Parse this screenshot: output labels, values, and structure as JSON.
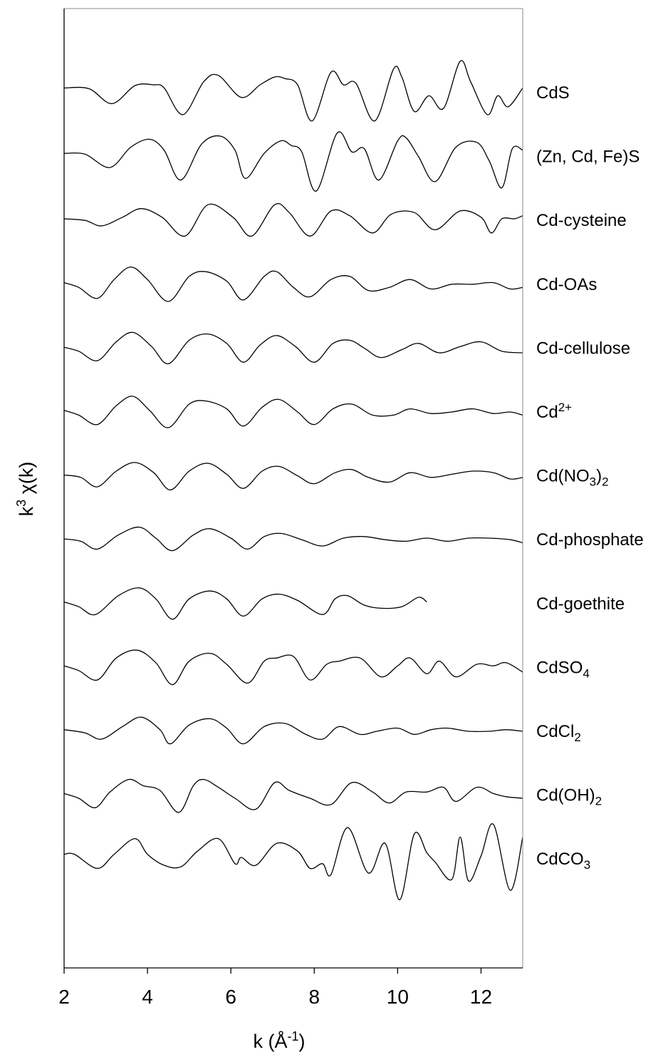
{
  "chart_data": {
    "type": "line",
    "title": "",
    "xlabel": "k (Å",
    "xlabel_sup": "-1",
    "xlabel_end": ")",
    "ylabel": "k",
    "ylabel_sup": "3",
    "ylabel_end": " χ(k)",
    "xlim": [
      2,
      13
    ],
    "xticks": [
      2,
      4,
      6,
      8,
      10,
      12
    ],
    "grid": false,
    "legend": "labels at right end of each trace",
    "y_axis_note": "traces vertically offset, no y tick labels",
    "series": [
      {
        "name": "CdS",
        "label_parts": [
          [
            "CdS",
            ""
          ]
        ],
        "x": [
          2.0,
          2.6,
          3.15,
          3.7,
          4.15,
          4.4,
          4.85,
          5.35,
          5.7,
          6.25,
          6.7,
          7.05,
          7.3,
          7.6,
          7.95,
          8.4,
          8.7,
          9.0,
          9.45,
          9.9,
          10.1,
          10.4,
          10.75,
          11.1,
          11.5,
          11.75,
          12.15,
          12.4,
          12.65,
          13.0
        ],
        "y": [
          0.3,
          0.25,
          -0.7,
          0.45,
          0.5,
          0.3,
          -1.4,
          0.7,
          1.1,
          -0.3,
          0.5,
          1.0,
          0.9,
          0.5,
          -1.8,
          1.3,
          0.5,
          0.6,
          -1.8,
          1.5,
          1.0,
          -1.2,
          -0.2,
          -1.0,
          2.0,
          0.7,
          -1.4,
          -0.2,
          -0.9,
          0.3
        ]
      },
      {
        "name": "(Zn, Cd, Fe)S",
        "label_parts": [
          [
            "(Zn, Cd, Fe)S",
            ""
          ]
        ],
        "x": [
          2.0,
          2.5,
          3.1,
          3.6,
          4.05,
          4.4,
          4.8,
          5.3,
          5.75,
          6.1,
          6.35,
          6.8,
          7.2,
          7.45,
          7.7,
          8.05,
          8.55,
          8.9,
          9.2,
          9.55,
          10.0,
          10.2,
          10.5,
          10.9,
          11.4,
          11.9,
          12.2,
          12.5,
          12.75,
          13.0
        ],
        "y": [
          0.2,
          0.15,
          -0.7,
          0.6,
          1.1,
          0.4,
          -1.5,
          0.8,
          1.3,
          0.4,
          -1.4,
          0.2,
          1.0,
          0.7,
          0.3,
          -2.2,
          1.5,
          0.3,
          0.5,
          -1.5,
          1.0,
          1.2,
          0.0,
          -1.6,
          0.6,
          0.9,
          -0.3,
          -2.0,
          0.5,
          0.4
        ]
      },
      {
        "name": "Cd-cysteine",
        "label_parts": [
          [
            "Cd-cysteine",
            ""
          ]
        ],
        "x": [
          2.0,
          2.5,
          2.9,
          3.4,
          3.85,
          4.35,
          4.9,
          5.45,
          6.05,
          6.5,
          7.05,
          7.4,
          7.9,
          8.4,
          8.85,
          9.4,
          9.85,
          10.4,
          10.9,
          11.5,
          12.0,
          12.25,
          12.5,
          12.8,
          13.0
        ],
        "y": [
          0.1,
          0.0,
          -0.35,
          0.2,
          0.75,
          0.2,
          -1.0,
          1.0,
          0.2,
          -1.0,
          1.0,
          0.5,
          -1.0,
          0.6,
          0.3,
          -0.8,
          0.4,
          0.5,
          -0.6,
          0.6,
          0.2,
          -0.8,
          0.1,
          0.1,
          0.3
        ]
      },
      {
        "name": "Cd-OAs",
        "label_parts": [
          [
            "Cd-OAs",
            ""
          ]
        ],
        "x": [
          2.0,
          2.35,
          2.8,
          3.2,
          3.6,
          4.0,
          4.5,
          5.0,
          5.4,
          5.9,
          6.3,
          6.8,
          7.1,
          7.5,
          7.9,
          8.4,
          8.85,
          9.3,
          9.8,
          10.3,
          10.8,
          11.3,
          11.8,
          12.3,
          12.7,
          13.0
        ],
        "y": [
          0.1,
          -0.2,
          -0.9,
          0.3,
          1.1,
          0.3,
          -1.1,
          0.5,
          0.8,
          0.2,
          -1.0,
          0.5,
          0.8,
          -0.2,
          -0.8,
          0.3,
          0.5,
          -0.4,
          -0.2,
          0.3,
          -0.3,
          0.0,
          0.0,
          0.1,
          -0.3,
          -0.2
        ]
      },
      {
        "name": "Cd-cellulose",
        "label_parts": [
          [
            "Cd-cellulose",
            ""
          ]
        ],
        "x": [
          2.0,
          2.35,
          2.8,
          3.25,
          3.65,
          4.1,
          4.5,
          5.0,
          5.45,
          5.9,
          6.3,
          6.7,
          7.1,
          7.55,
          8.0,
          8.45,
          8.85,
          9.2,
          9.6,
          10.1,
          10.5,
          11.0,
          11.5,
          12.0,
          12.5,
          13.0
        ],
        "y": [
          0.05,
          -0.2,
          -0.8,
          0.4,
          1.0,
          0.1,
          -1.0,
          0.5,
          0.9,
          0.3,
          -0.9,
          0.2,
          0.8,
          0.1,
          -0.9,
          0.3,
          0.5,
          0.0,
          -0.6,
          -0.1,
          0.3,
          -0.3,
          0.1,
          0.4,
          -0.2,
          -0.3
        ]
      },
      {
        "name": "Cd2+",
        "label_parts": [
          [
            "Cd",
            ""
          ],
          [
            "2+",
            "sup"
          ]
        ],
        "x": [
          2.0,
          2.35,
          2.8,
          3.25,
          3.65,
          4.05,
          4.5,
          5.0,
          5.4,
          5.9,
          6.3,
          6.75,
          7.15,
          7.6,
          8.0,
          8.45,
          8.9,
          9.4,
          9.9,
          10.3,
          10.8,
          11.3,
          11.8,
          12.3,
          12.7,
          13.0
        ],
        "y": [
          0.1,
          -0.2,
          -0.8,
          0.4,
          1.0,
          0.1,
          -1.0,
          0.5,
          0.7,
          0.2,
          -0.9,
          0.3,
          0.8,
          0.0,
          -0.8,
          0.2,
          0.5,
          -0.2,
          -0.2,
          0.2,
          -0.1,
          0.0,
          0.2,
          -0.1,
          0.0,
          -0.2
        ]
      },
      {
        "name": "Cd(NO3)2",
        "label_parts": [
          [
            "Cd(NO",
            ""
          ],
          [
            "3",
            "sub"
          ],
          [
            ")",
            ""
          ],
          [
            "2",
            "sub"
          ]
        ],
        "x": [
          2.0,
          2.4,
          2.8,
          3.25,
          3.7,
          4.15,
          4.55,
          5.0,
          5.45,
          5.9,
          6.3,
          6.75,
          7.15,
          7.6,
          8.0,
          8.5,
          8.9,
          9.3,
          9.8,
          10.3,
          10.8,
          11.3,
          11.8,
          12.3,
          12.7,
          13.0
        ],
        "y": [
          0.05,
          -0.1,
          -0.7,
          0.3,
          0.85,
          0.2,
          -0.9,
          0.3,
          0.8,
          0.1,
          -0.8,
          0.3,
          0.6,
          0.0,
          -0.5,
          0.2,
          0.4,
          -0.1,
          -0.4,
          0.2,
          -0.1,
          0.1,
          0.3,
          0.2,
          -0.2,
          -0.1
        ]
      },
      {
        "name": "Cd-phosphate",
        "label_parts": [
          [
            "Cd-phosphate",
            ""
          ]
        ],
        "x": [
          2.0,
          2.4,
          2.8,
          3.3,
          3.8,
          4.2,
          4.6,
          5.1,
          5.5,
          6.0,
          6.4,
          6.8,
          7.2,
          7.7,
          8.2,
          8.7,
          9.2,
          9.7,
          10.2,
          10.7,
          11.2,
          11.7,
          12.2,
          12.7,
          13.0
        ],
        "y": [
          0.05,
          -0.1,
          -0.6,
          0.3,
          0.8,
          0.1,
          -0.7,
          0.3,
          0.7,
          0.1,
          -0.6,
          0.2,
          0.4,
          0.0,
          -0.4,
          0.1,
          0.2,
          0.0,
          -0.1,
          0.1,
          -0.1,
          0.1,
          0.1,
          0.0,
          -0.2
        ]
      },
      {
        "name": "Cd-goethite",
        "label_parts": [
          [
            "Cd-goethite",
            ""
          ]
        ],
        "x": [
          2.0,
          2.35,
          2.75,
          3.3,
          3.8,
          4.2,
          4.6,
          5.0,
          5.5,
          5.9,
          6.3,
          6.75,
          7.15,
          7.6,
          8.2,
          8.5,
          8.8,
          9.2,
          9.6,
          10.1,
          10.5,
          10.7
        ],
        "y": [
          0.1,
          -0.2,
          -0.7,
          0.5,
          1.0,
          0.3,
          -1.0,
          0.3,
          0.8,
          0.3,
          -0.8,
          0.3,
          0.6,
          0.2,
          -0.7,
          0.3,
          0.5,
          -0.1,
          -0.3,
          -0.2,
          0.4,
          0.1
        ]
      },
      {
        "name": "CdSO4",
        "label_parts": [
          [
            "CdSO",
            ""
          ],
          [
            "4",
            "sub"
          ]
        ],
        "x": [
          2.0,
          2.35,
          2.8,
          3.25,
          3.75,
          4.2,
          4.6,
          5.0,
          5.5,
          5.9,
          6.4,
          6.8,
          7.1,
          7.5,
          7.9,
          8.3,
          8.6,
          9.1,
          9.6,
          10.0,
          10.3,
          10.7,
          11.0,
          11.4,
          11.9,
          12.3,
          12.6,
          13.0
        ],
        "y": [
          0.1,
          -0.2,
          -0.8,
          0.6,
          1.1,
          0.3,
          -1.1,
          0.4,
          0.9,
          0.2,
          -1.0,
          0.4,
          0.6,
          0.7,
          -0.8,
          0.2,
          0.4,
          0.6,
          -0.6,
          0.1,
          0.6,
          -0.4,
          0.4,
          -0.6,
          0.2,
          0.1,
          0.3,
          -0.3
        ]
      },
      {
        "name": "CdCl2",
        "label_parts": [
          [
            "CdCl",
            ""
          ],
          [
            "2",
            "sub"
          ]
        ],
        "x": [
          2.0,
          2.5,
          2.9,
          3.4,
          3.85,
          4.3,
          4.55,
          5.0,
          5.5,
          5.9,
          6.3,
          6.8,
          7.3,
          7.8,
          8.2,
          8.6,
          9.1,
          9.5,
          10.0,
          10.4,
          10.8,
          11.2,
          11.7,
          12.2,
          12.6,
          13.0
        ],
        "y": [
          0.1,
          -0.1,
          -0.5,
          0.3,
          0.9,
          0.1,
          -0.8,
          0.4,
          0.8,
          0.2,
          -0.8,
          0.3,
          0.5,
          -0.2,
          -0.5,
          0.3,
          -0.2,
          0.0,
          0.2,
          -0.2,
          0.1,
          0.2,
          0.0,
          0.0,
          0.1,
          0.0
        ]
      },
      {
        "name": "Cd(OH)2",
        "label_parts": [
          [
            "Cd(OH)",
            ""
          ],
          [
            "2",
            "sub"
          ]
        ],
        "x": [
          2.0,
          2.35,
          2.75,
          3.1,
          3.55,
          3.9,
          4.3,
          4.75,
          5.1,
          5.35,
          5.7,
          6.1,
          6.6,
          7.05,
          7.4,
          7.9,
          8.4,
          8.9,
          9.4,
          9.8,
          10.2,
          10.7,
          11.1,
          11.4,
          11.9,
          12.3,
          12.6,
          13.0
        ],
        "y": [
          0.1,
          -0.2,
          -0.8,
          0.2,
          1.0,
          0.6,
          0.3,
          -1.1,
          0.6,
          1.0,
          0.5,
          -0.2,
          -0.9,
          0.8,
          0.3,
          -0.2,
          -0.6,
          0.8,
          0.2,
          -0.5,
          0.2,
          0.2,
          0.5,
          -0.4,
          0.5,
          0.1,
          -0.1,
          -0.2
        ]
      },
      {
        "name": "CdCO3",
        "label_parts": [
          [
            "CdCO",
            ""
          ],
          [
            "3",
            "sub"
          ]
        ],
        "x": [
          2.0,
          2.25,
          2.8,
          3.2,
          3.7,
          4.0,
          4.4,
          4.8,
          5.2,
          5.7,
          6.1,
          6.25,
          6.6,
          7.1,
          7.6,
          7.9,
          8.2,
          8.4,
          8.8,
          9.3,
          9.7,
          10.05,
          10.4,
          10.7,
          10.9,
          11.3,
          11.5,
          11.7,
          12.0,
          12.3,
          12.7,
          13.0
        ],
        "y": [
          0.3,
          0.3,
          -0.6,
          0.3,
          1.3,
          0.3,
          -0.4,
          -0.5,
          0.5,
          1.3,
          -0.3,
          0.1,
          -0.4,
          1.0,
          0.5,
          -0.6,
          -0.3,
          -1.0,
          2.0,
          -0.9,
          1.0,
          -2.6,
          1.6,
          0.4,
          -0.2,
          -1.3,
          1.4,
          -1.4,
          0.2,
          2.2,
          -2.0,
          1.4
        ]
      }
    ]
  }
}
